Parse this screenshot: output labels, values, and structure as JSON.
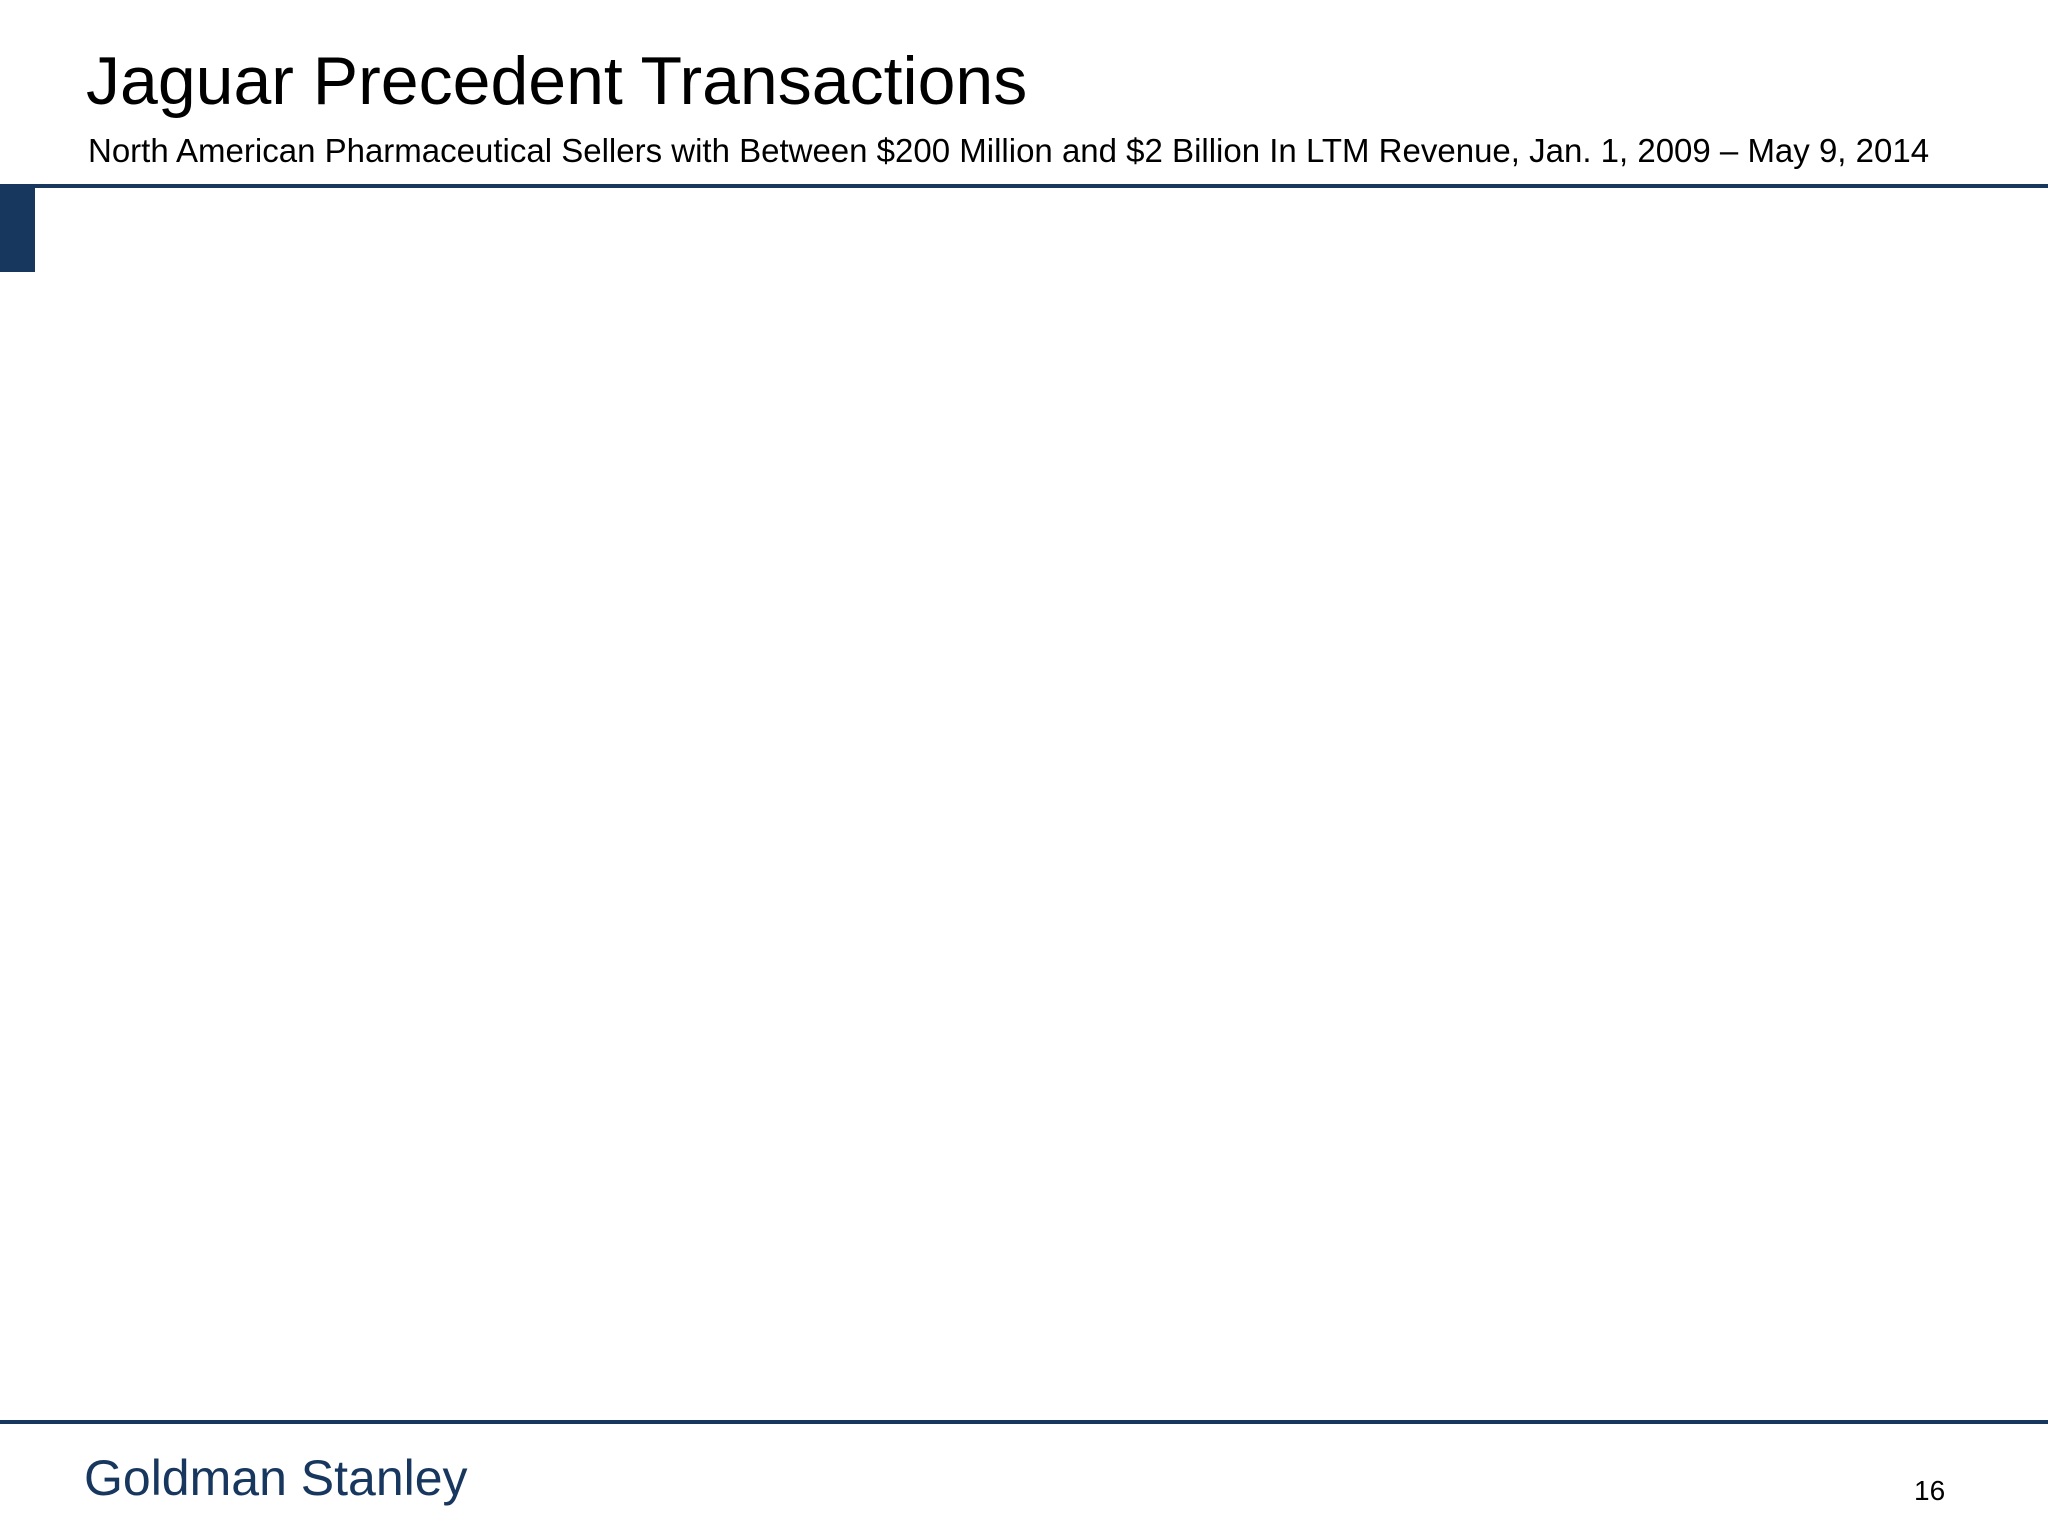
{
  "slide": {
    "title": "Jaguar Precedent Transactions",
    "subtitle": "North American Pharmaceutical Sellers with Between $200 Million and $2 Billion In LTM Revenue, Jan. 1, 2009 – May 9, 2014",
    "page_number": "16"
  },
  "footer": {
    "brand": "Goldman Stanley"
  },
  "colors": {
    "accent": "#17375e",
    "text": "#000000",
    "background": "#ffffff"
  }
}
